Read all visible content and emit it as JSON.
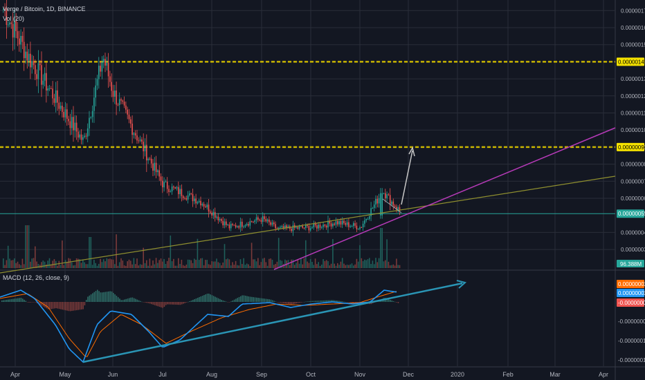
{
  "header": {
    "symbol": "Verge / Bitcoin, 1D, BINANCE",
    "volume_label": "Vol (20)",
    "macd_label": "MACD (12, 26, close, 9)"
  },
  "colors": {
    "background": "#131722",
    "grid": "#2a2e39",
    "up": "#26a69a",
    "down": "#ef5350",
    "yellow_level": "#c8b400",
    "magenta_trend": "#b63ab8",
    "olive_trend": "#8f8f2f",
    "arrow": "#c8c8c8",
    "macd_line": "#2196f3",
    "signal_line": "#ff6d00",
    "macd_trend": "#2a95b5",
    "axis_text": "#b2b5be"
  },
  "chart_data": {
    "type": "candlestick",
    "title": "Verge / Bitcoin, 1D, BINANCE",
    "x_ticks": [
      "Apr",
      "May",
      "Jun",
      "Jul",
      "Aug",
      "Sep",
      "Oct",
      "Nov",
      "Dec",
      "2020",
      "Feb",
      "Mar",
      "Apr"
    ],
    "price_axis": {
      "min": 3e-07,
      "max": 1.7e-06,
      "ticks": [
        "0.00000170",
        "0.00000160",
        "0.00000150",
        "0.00000140",
        "0.00000130",
        "0.00000120",
        "0.00000110",
        "0.00000100",
        "0.00000090",
        "0.00000080",
        "0.00000070",
        "0.00000060",
        "0.00000051",
        "0.00000040",
        "0.00000030"
      ]
    },
    "levels": [
      {
        "name": "resistance-1",
        "value": 1.4e-06,
        "label": "0.00000140",
        "color": "#f5e200"
      },
      {
        "name": "resistance-2",
        "value": 9e-07,
        "label": "0.00000090",
        "color": "#f5e200"
      }
    ],
    "last_price": {
      "value": 5.1e-07,
      "label": "0.00000051"
    },
    "volume_badge": "96.388M",
    "price_series": {
      "monthly_keypoints": [
        {
          "month": "Apr",
          "price": 1.71e-06
        },
        {
          "month": "May",
          "price": 1.43e-06
        },
        {
          "month": "May-mid",
          "price": 9.3e-07
        },
        {
          "month": "May-end",
          "price": 1.43e-06
        },
        {
          "month": "Jun",
          "price": 1.22e-06
        },
        {
          "month": "Jul",
          "price": 6.8e-07
        },
        {
          "month": "Aug",
          "price": 5.8e-07
        },
        {
          "month": "Aug-mid",
          "price": 4.3e-07
        },
        {
          "month": "Sep",
          "price": 4.8e-07
        },
        {
          "month": "Sep-mid",
          "price": 4.2e-07
        },
        {
          "month": "Oct",
          "price": 4.3e-07
        },
        {
          "month": "Oct-mid",
          "price": 4.6e-07
        },
        {
          "month": "Nov",
          "price": 4.3e-07
        },
        {
          "month": "Nov-mid",
          "price": 6.4e-07
        },
        {
          "month": "Nov-end",
          "price": 5.2e-07
        }
      ]
    },
    "macd_axis": {
      "ticks": [
        "0.00000002",
        "0.00000002",
        "-0.00000000",
        "-0.00000005",
        "-0.00000010",
        "-0.00000015"
      ]
    },
    "annotations": [
      {
        "type": "arrow",
        "from_price": 5.6e-07,
        "to_price": 9e-07
      },
      {
        "type": "trendline",
        "name": "olive-trend",
        "color": "olive"
      },
      {
        "type": "trendline",
        "name": "magenta-trend",
        "color": "magenta"
      },
      {
        "type": "trendline",
        "name": "macd-uptrend",
        "color": "teal"
      }
    ]
  }
}
